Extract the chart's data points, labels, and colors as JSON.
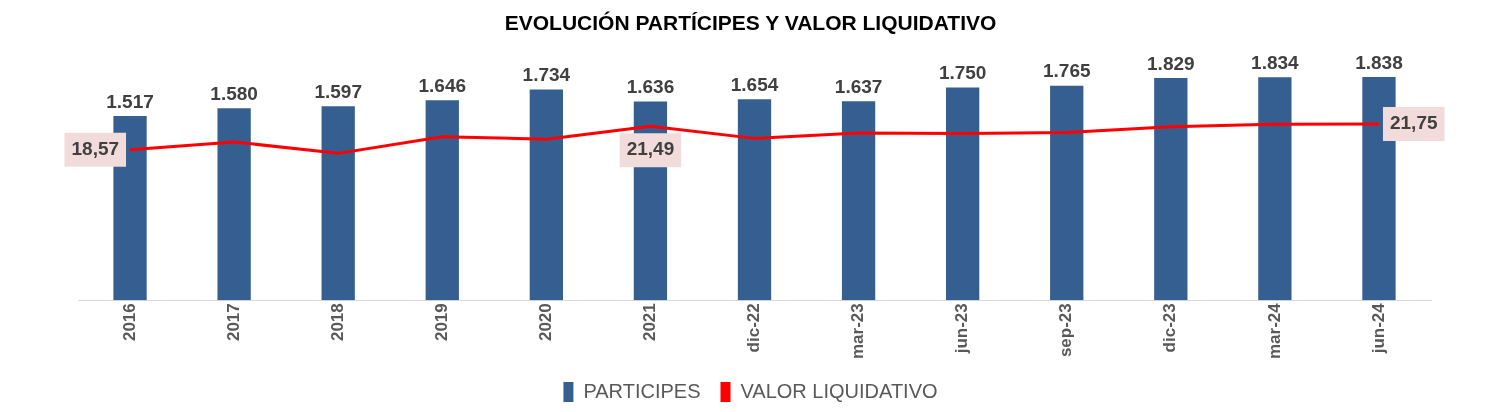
{
  "chart_data": {
    "type": "bar",
    "title": "EVOLUCIÓN PARTÍCIPES Y VALOR LIQUIDATIVO",
    "categories": [
      "2016",
      "2017",
      "2018",
      "2019",
      "2020",
      "2021",
      "dic-22",
      "mar-23",
      "jun-23",
      "sep-23",
      "dic-23",
      "mar-24",
      "jun-24"
    ],
    "series": [
      {
        "name": "PARTICIPES",
        "type": "bar",
        "color": "#355f91",
        "values": [
          1517,
          1580,
          1597,
          1646,
          1734,
          1636,
          1654,
          1637,
          1750,
          1765,
          1829,
          1834,
          1838
        ],
        "value_labels": [
          "1.517",
          "1.580",
          "1.597",
          "1.646",
          "1.734",
          "1.636",
          "1.654",
          "1.637",
          "1.750",
          "1.765",
          "1.829",
          "1.834",
          "1.838"
        ]
      },
      {
        "name": "VALOR LIQUIDATIVO",
        "type": "line",
        "axis": "y2",
        "color": "#ff0000",
        "values": [
          18.57,
          19.54,
          18.13,
          20.18,
          19.88,
          21.49,
          19.98,
          20.65,
          20.58,
          20.72,
          21.42,
          21.72,
          21.75
        ],
        "value_labels": [
          "18,57",
          null,
          null,
          null,
          null,
          "21,49",
          null,
          null,
          null,
          null,
          null,
          null,
          "21,75"
        ]
      }
    ],
    "tick_labels": "x",
    "grid": false,
    "legend": "bottom",
    "marker": "none"
  }
}
